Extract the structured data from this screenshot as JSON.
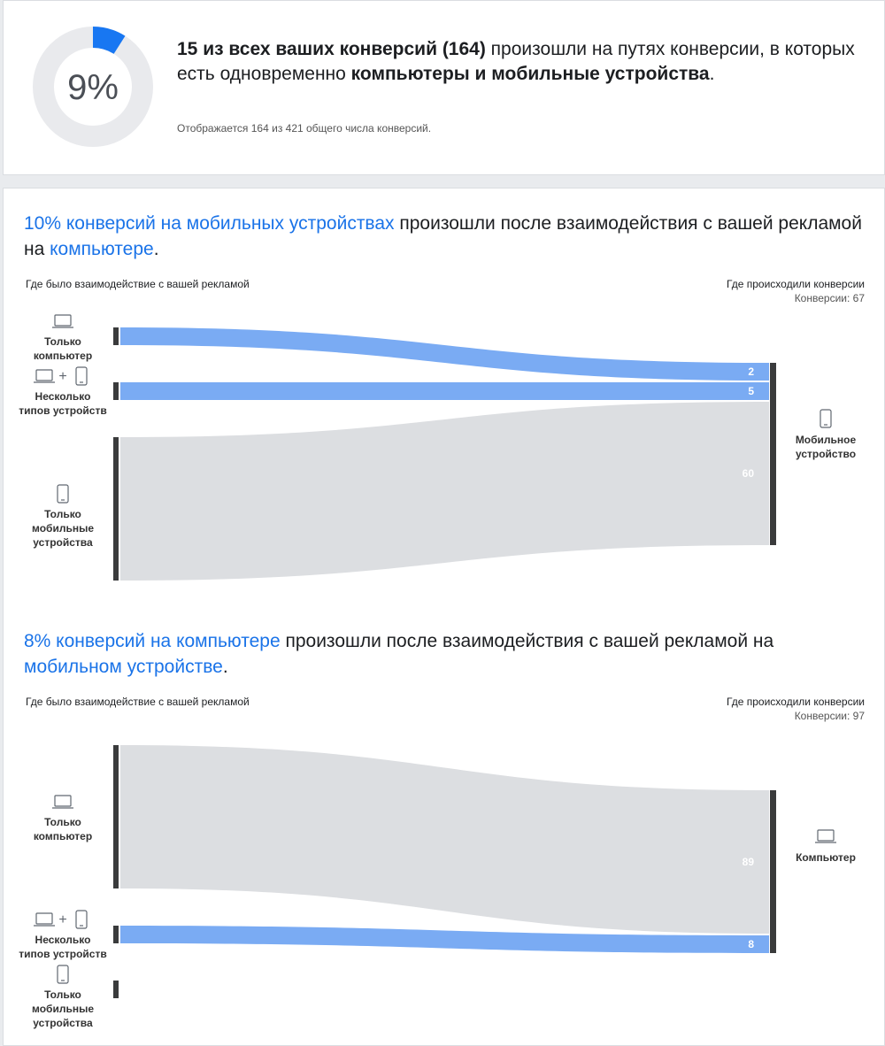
{
  "summary": {
    "donut": {
      "value": 9,
      "label": "9%",
      "color": "#1877f2",
      "track_color": "#e9eaed"
    },
    "headline": [
      {
        "text": "15 из всех ваших конверсий (164)",
        "bold": true
      },
      {
        "text": " произошли на путях конверсии, в которых есть одновременно ",
        "bold": false
      },
      {
        "text": "компьютеры и мобильные устройства",
        "bold": true
      },
      {
        "text": ".",
        "bold": false
      }
    ],
    "note": "Отображается 164 из 421 общего числа конверсий."
  },
  "sections": [
    {
      "title": [
        {
          "text": "10% конверсий на мобильных устройствах",
          "highlight": true
        },
        {
          "text": " произошли после взаимодействия с вашей рекламой на ",
          "highlight": false
        },
        {
          "text": "компьютере",
          "highlight": true
        },
        {
          "text": ".",
          "highlight": false
        }
      ],
      "left_header": "Где было взаимодействие с вашей рекламой",
      "right_header": "Где происходили конверсии",
      "total_label": "Конверсии: 67",
      "sources": [
        {
          "label": "Только компьютер",
          "icon": "laptop",
          "value": 2,
          "highlight": true
        },
        {
          "label": "Несколько типов устройств",
          "icon": "both",
          "value": 5,
          "highlight": true
        },
        {
          "label": "Только мобильные устройства",
          "icon": "phone",
          "value": 60,
          "highlight": false
        }
      ],
      "target": {
        "label": "Мобильное устройство",
        "icon": "phone"
      }
    },
    {
      "title": [
        {
          "text": "8% конверсий на компьютере",
          "highlight": true
        },
        {
          "text": " произошли после взаимодействия с вашей рекламой на ",
          "highlight": false
        },
        {
          "text": "мобильном устройстве",
          "highlight": true
        },
        {
          "text": ".",
          "highlight": false
        }
      ],
      "left_header": "Где было взаимодействие с вашей рекламой",
      "right_header": "Где происходили конверсии",
      "total_label": "Конверсии: 97",
      "sources": [
        {
          "label": "Только компьютер",
          "icon": "laptop",
          "value": 89,
          "highlight": false
        },
        {
          "label": "Несколько типов устройств",
          "icon": "both",
          "value": 8,
          "highlight": true
        },
        {
          "label": "Только мобильные устройства",
          "icon": "phone",
          "value": 0,
          "highlight": false
        }
      ],
      "target": {
        "label": "Компьютер",
        "icon": "laptop"
      }
    }
  ]
}
